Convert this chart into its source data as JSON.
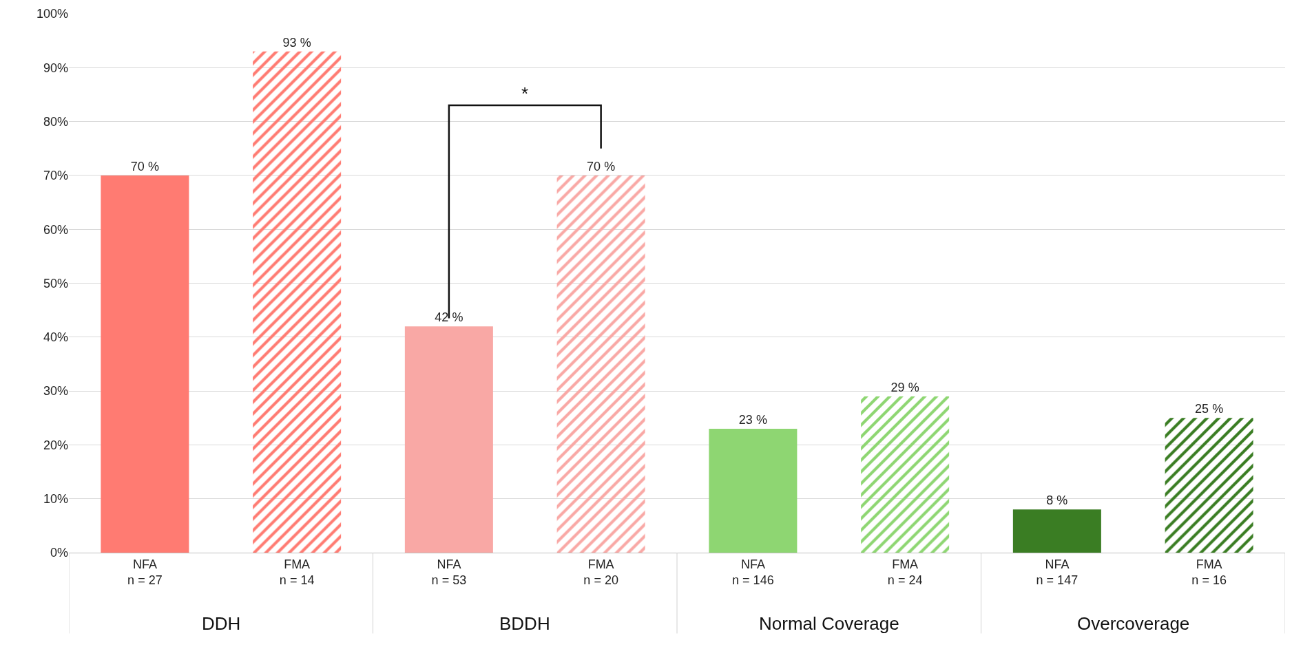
{
  "chart_data": {
    "type": "bar",
    "categories": [
      "NFA\nn = 27",
      "FMA\nn = 14",
      "NFA\nn = 53",
      "FMA\nn = 20",
      "NFA\nn = 146",
      "FMA\nn = 24",
      "NFA\nn = 147",
      "FMA\nn = 16"
    ],
    "values": [
      70,
      93,
      42,
      70,
      23,
      29,
      8,
      25
    ],
    "colors": [
      "#ff7b72",
      "#ff7b72",
      "#f9a8a5",
      "#f9a8a5",
      "#8ed672",
      "#8ed672",
      "#3a7d23",
      "#3a7d23"
    ],
    "value_labels": [
      "70 %",
      "93 %",
      "42 %",
      "70 %",
      "23 %",
      "29 %",
      "8 %",
      "25 %"
    ],
    "ylim": [
      0,
      100
    ],
    "yticks": [
      {
        "value": 0,
        "label": "0%"
      },
      {
        "value": 10,
        "label": "10%"
      },
      {
        "value": 20,
        "label": "20%"
      },
      {
        "value": 30,
        "label": "30%"
      },
      {
        "value": 40,
        "label": "40%"
      },
      {
        "value": 50,
        "label": "50%"
      },
      {
        "value": 60,
        "label": "60%"
      },
      {
        "value": 70,
        "label": "70%"
      },
      {
        "value": 80,
        "label": "80%"
      },
      {
        "value": 90,
        "label": "90%"
      },
      {
        "value": 100,
        "label": "100%"
      }
    ],
    "grid": "y",
    "annotations": [
      "DDH",
      "BDDH",
      "Normal Coverage",
      "Overcoverage",
      "*"
    ]
  }
}
